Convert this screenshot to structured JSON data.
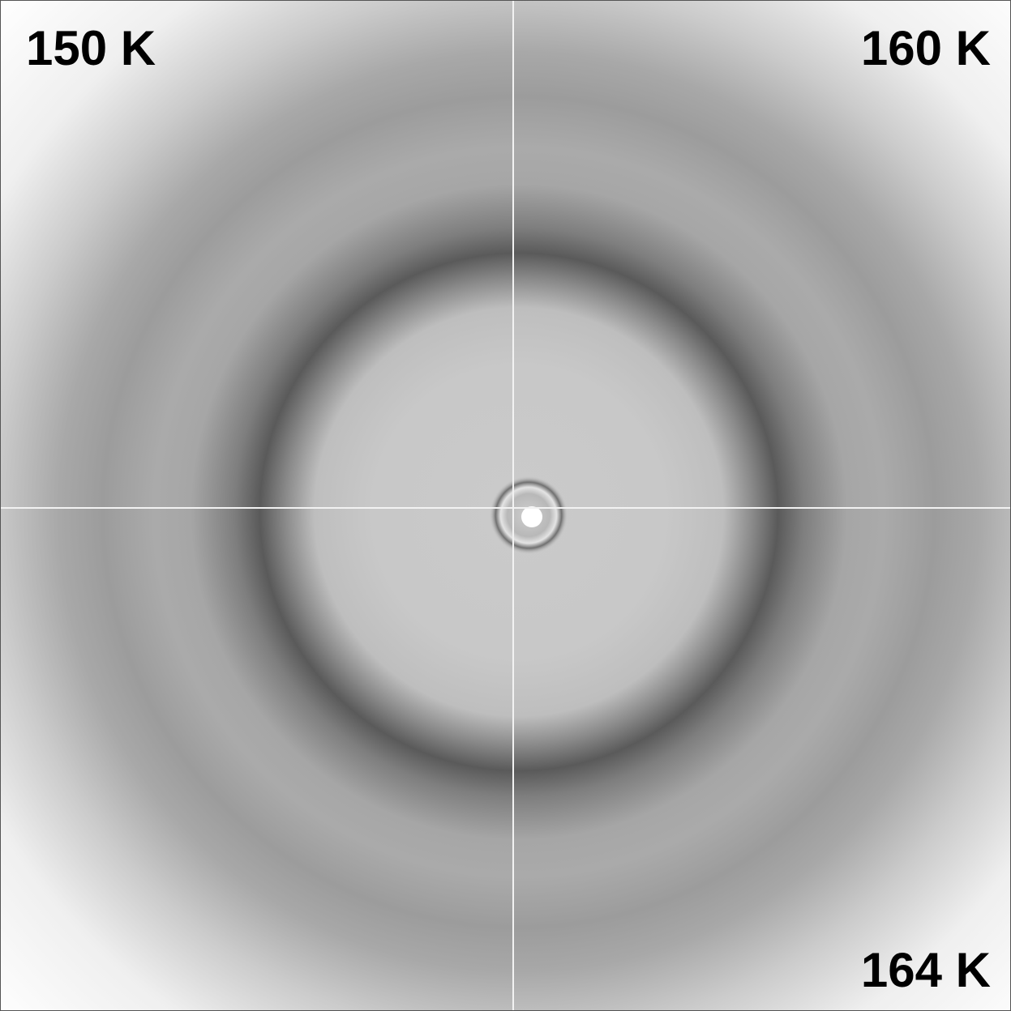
{
  "panels": [
    {
      "label": "150 K"
    },
    {
      "label": "160 K"
    },
    {
      "label": "164 K"
    }
  ]
}
